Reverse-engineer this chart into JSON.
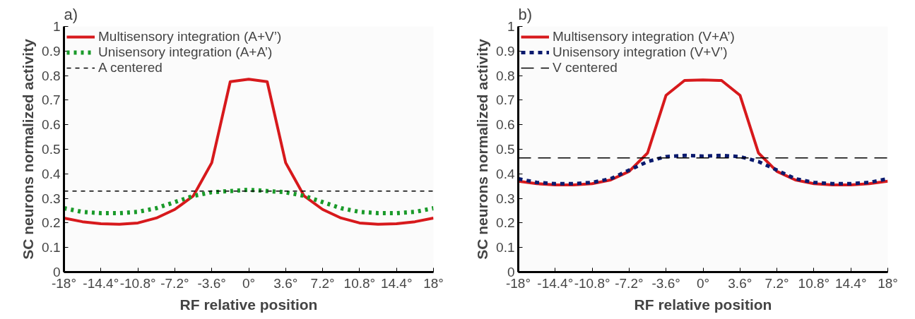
{
  "chart_data": [
    {
      "type": "line",
      "title": "a)",
      "xlabel": "RF relative position",
      "ylabel": "SC neurons normalized activity",
      "x": [
        -18,
        -16.2,
        -14.4,
        -12.6,
        -10.8,
        -9,
        -7.2,
        -5.4,
        -3.6,
        -1.8,
        0,
        1.8,
        3.6,
        5.4,
        7.2,
        9,
        10.8,
        12.6,
        14.4,
        16.2,
        18
      ],
      "series": [
        {
          "name": "Multisensory integration (A+V’)",
          "color": "#d7191c",
          "line_style": "solid",
          "values": [
            0.22,
            0.205,
            0.197,
            0.195,
            0.2,
            0.22,
            0.255,
            0.31,
            0.445,
            0.775,
            0.785,
            0.775,
            0.445,
            0.31,
            0.255,
            0.22,
            0.2,
            0.195,
            0.197,
            0.205,
            0.22
          ]
        },
        {
          "name": "Unisensory integration (A+A’)",
          "color": "#1a9a2a",
          "line_style": "dotted",
          "values": [
            0.26,
            0.245,
            0.24,
            0.24,
            0.245,
            0.26,
            0.285,
            0.31,
            0.325,
            0.33,
            0.335,
            0.33,
            0.325,
            0.31,
            0.285,
            0.26,
            0.245,
            0.24,
            0.24,
            0.245,
            0.26
          ]
        }
      ],
      "ref_lines": [
        {
          "axis": "y",
          "value": 0.33,
          "label": "A centered",
          "color": "#000000",
          "line_style": "dashed"
        }
      ],
      "xlim": [
        -18,
        18
      ],
      "ylim": [
        0,
        1
      ],
      "xticks": [
        {
          "value": -18,
          "label": "-18°"
        },
        {
          "value": -14.4,
          "label": "-14.4°"
        },
        {
          "value": -10.8,
          "label": "-10.8°"
        },
        {
          "value": -7.2,
          "label": "-7.2°"
        },
        {
          "value": -3.6,
          "label": "-3.6°"
        },
        {
          "value": 0,
          "label": "0°"
        },
        {
          "value": 3.6,
          "label": "3.6°"
        },
        {
          "value": 7.2,
          "label": "7.2°"
        },
        {
          "value": 10.8,
          "label": "10.8°"
        },
        {
          "value": 14.4,
          "label": "14.4°"
        },
        {
          "value": 18,
          "label": "18°"
        }
      ],
      "yticks": [
        0,
        0.1,
        0.2,
        0.3,
        0.4,
        0.5,
        0.6,
        0.7,
        0.8,
        0.9,
        1
      ],
      "grid": false,
      "legend": "top left",
      "marker": "none"
    },
    {
      "type": "line",
      "title": "b)",
      "xlabel": "RF relative position",
      "ylabel": "SC neurons normalized activity",
      "x": [
        -18,
        -16.2,
        -14.4,
        -12.6,
        -10.8,
        -9,
        -7.2,
        -5.4,
        -3.6,
        -1.8,
        0,
        1.8,
        3.6,
        5.4,
        7.2,
        9,
        10.8,
        12.6,
        14.4,
        16.2,
        18
      ],
      "series": [
        {
          "name": "Multisensory integration (V+A’)",
          "color": "#d7191c",
          "line_style": "solid",
          "values": [
            0.37,
            0.36,
            0.355,
            0.355,
            0.36,
            0.375,
            0.41,
            0.485,
            0.72,
            0.78,
            0.782,
            0.78,
            0.72,
            0.485,
            0.41,
            0.375,
            0.36,
            0.355,
            0.355,
            0.36,
            0.37
          ]
        },
        {
          "name": "Unisensory integration (V+V’)",
          "color": "#0a1a6e",
          "line_style": "dashed",
          "values": [
            0.38,
            0.365,
            0.36,
            0.36,
            0.365,
            0.38,
            0.415,
            0.45,
            0.47,
            0.475,
            0.472,
            0.475,
            0.47,
            0.45,
            0.415,
            0.38,
            0.365,
            0.36,
            0.36,
            0.365,
            0.38
          ]
        }
      ],
      "ref_lines": [
        {
          "axis": "y",
          "value": 0.465,
          "label": "V centered",
          "color": "#000000",
          "line_style": "longdash"
        }
      ],
      "xlim": [
        -18,
        18
      ],
      "ylim": [
        0,
        1
      ],
      "xticks": [
        {
          "value": -18,
          "label": "-18°"
        },
        {
          "value": -14.4,
          "label": "-14.4°"
        },
        {
          "value": -10.8,
          "label": "-10.8°"
        },
        {
          "value": -7.2,
          "label": "-7.2°"
        },
        {
          "value": -3.6,
          "label": "-3.6°"
        },
        {
          "value": 0,
          "label": "0°"
        },
        {
          "value": 3.6,
          "label": "3.6°"
        },
        {
          "value": 7.2,
          "label": "7.2°"
        },
        {
          "value": 10.8,
          "label": "10.8°"
        },
        {
          "value": 14.4,
          "label": "14.4°"
        },
        {
          "value": 18,
          "label": "18°"
        }
      ],
      "yticks": [
        0,
        0.1,
        0.2,
        0.3,
        0.4,
        0.5,
        0.6,
        0.7,
        0.8,
        0.9,
        1
      ],
      "grid": false,
      "legend": "top left",
      "marker": "none"
    }
  ]
}
